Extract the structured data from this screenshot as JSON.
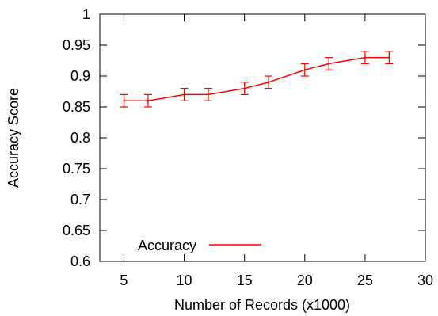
{
  "chart_data": {
    "type": "line",
    "title": "",
    "xlabel": "Number of Records (x1000)",
    "ylabel": "Accuracy Score",
    "xlim": [
      3,
      30
    ],
    "ylim": [
      0.6,
      1.0
    ],
    "xticks": [
      5,
      10,
      15,
      20,
      25,
      30
    ],
    "xtick_labels": [
      "5",
      "10",
      "15",
      "20",
      "25",
      "30"
    ],
    "yticks": [
      0.6,
      0.65,
      0.7,
      0.75,
      0.8,
      0.85,
      0.9,
      0.95,
      1.0
    ],
    "ytick_labels": [
      "0.6",
      "0.65",
      "0.7",
      "0.75",
      "0.8",
      "0.85",
      "0.9",
      "0.95",
      "1"
    ],
    "grid": false,
    "legend_position": "bottom-left",
    "series": [
      {
        "name": "Accuracy",
        "color": "#ff0000",
        "x": [
          5,
          7,
          10,
          12,
          15,
          17,
          20,
          22,
          25,
          27
        ],
        "y": [
          0.86,
          0.86,
          0.87,
          0.87,
          0.88,
          0.89,
          0.91,
          0.92,
          0.93,
          0.93
        ],
        "error": [
          0.01,
          0.01,
          0.01,
          0.01,
          0.01,
          0.01,
          0.01,
          0.01,
          0.01,
          0.01
        ]
      }
    ]
  }
}
